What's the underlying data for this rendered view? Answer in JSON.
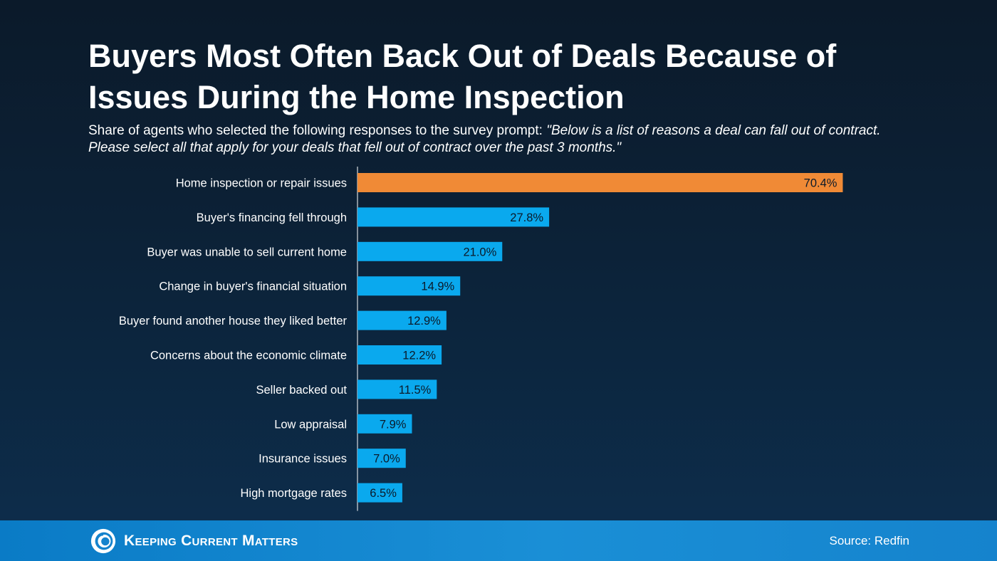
{
  "chart_data": {
    "type": "bar",
    "orientation": "horizontal",
    "title": "Buyers Most Often Back Out of Deals Because of Issues During the Home Inspection",
    "subtitle_lead": "Share of agents who selected the following responses to the survey prompt: ",
    "subtitle_quote": "\"Below is a list of reasons a deal can fall out of contract. Please select all that apply for your deals that fell out of contract over the past 3 months.\"",
    "categories": [
      "Home inspection or repair issues",
      "Buyer's financing fell through",
      "Buyer was unable to sell current home",
      "Change in buyer's financial situation",
      "Buyer found another house they liked better",
      "Concerns about the economic climate",
      "Seller backed out",
      "Low appraisal",
      "Insurance issues",
      "High mortgage rates"
    ],
    "values": [
      70.4,
      27.8,
      21.0,
      14.9,
      12.9,
      12.2,
      11.5,
      7.9,
      7.0,
      6.5
    ],
    "value_labels": [
      "70.4%",
      "27.8%",
      "21.0%",
      "14.9%",
      "12.9%",
      "12.2%",
      "11.5%",
      "7.9%",
      "7.0%",
      "6.5%"
    ],
    "highlight_index": 0,
    "colors": {
      "highlight": "#f08a36",
      "bar": "#0aa9ee",
      "axis": "#ffffff",
      "label": "#ffffff",
      "value_text": "#0b1a2a"
    },
    "xlim": [
      0,
      100
    ],
    "grid": false,
    "legend": "none"
  },
  "footer": {
    "brand": "Keeping Current Matters",
    "logo_icon": "kcm-swirl-logo",
    "source": "Source: Redfin"
  }
}
